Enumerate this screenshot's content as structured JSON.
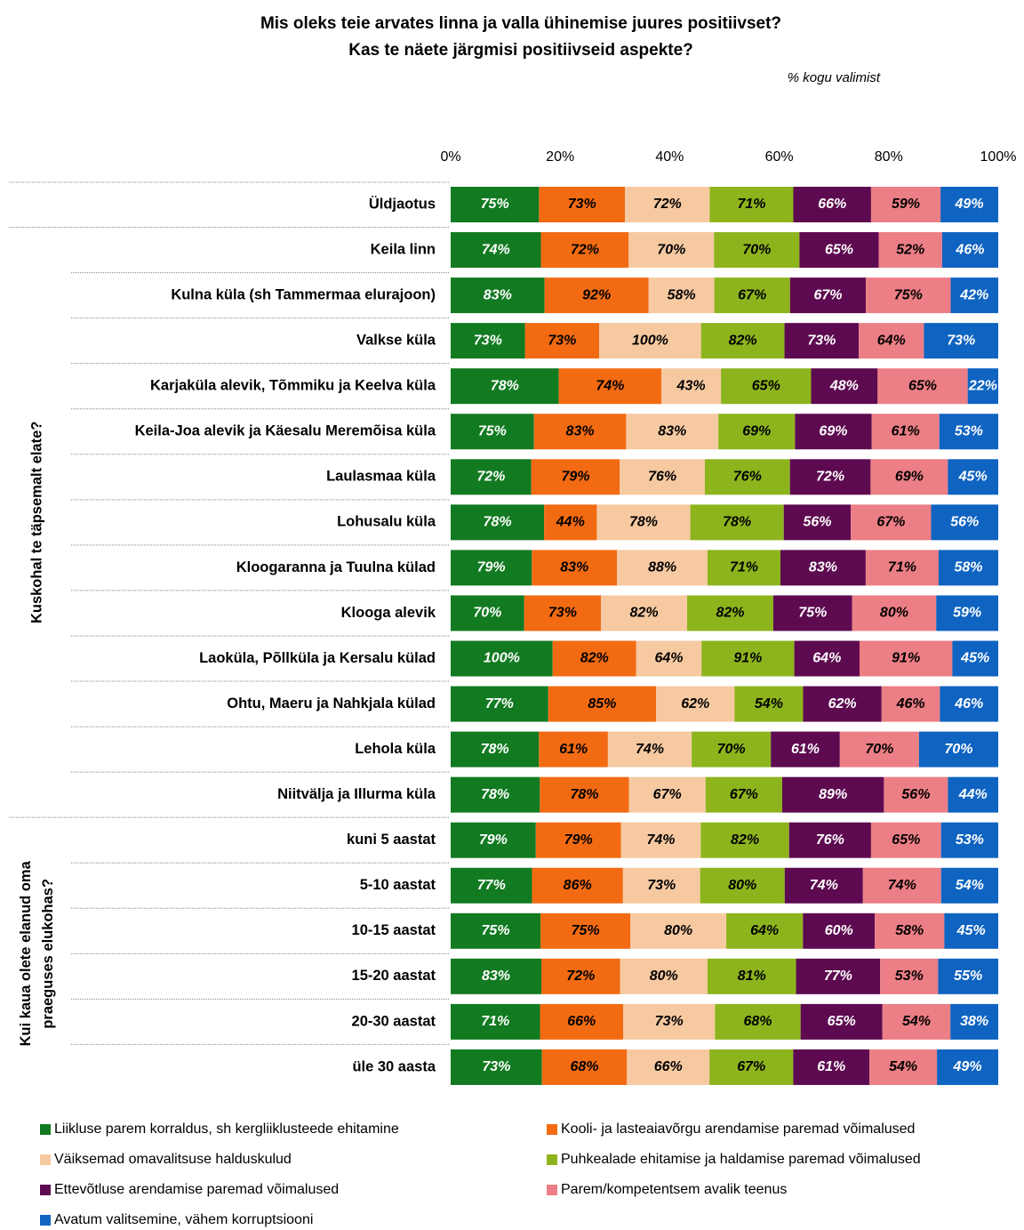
{
  "chart_data": {
    "type": "bar",
    "stacking": "percent",
    "title": [
      "Mis oleks teie arvates linna ja valla ühinemise juures positiivset?",
      "Kas te näete järgmisi positiivseid aspekte?"
    ],
    "subtitle": "% kogu valimist",
    "xlim": [
      0,
      100
    ],
    "xticks": [
      {
        "value": 0,
        "label": "0%"
      },
      {
        "value": 20,
        "label": "20%"
      },
      {
        "value": 40,
        "label": "40%"
      },
      {
        "value": 60,
        "label": "60%"
      },
      {
        "value": 80,
        "label": "80%"
      },
      {
        "value": 100,
        "label": "100%"
      }
    ],
    "groups": [
      {
        "categories": [
          "Üldjaotus"
        ]
      },
      {
        "label": [
          "Kuskohal te täpsemalt elate?"
        ],
        "categories": [
          "Keila linn",
          "Kulna küla (sh Tammermaa elurajoon)",
          "Valkse küla",
          "Karjaküla alevik, Tõmmiku ja Keelva küla",
          "Keila-Joa alevik ja Käesalu Meremõisa küla",
          "Laulasmaa küla",
          "Lohusalu küla",
          "Kloogaranna ja Tuulna külad",
          "Klooga alevik",
          "Laoküla, Põllküla ja Kersalu külad",
          "Ohtu, Maeru ja Nahkjala külad",
          "Lehola küla",
          "Niitvälja ja Illurma küla"
        ]
      },
      {
        "label": [
          "Kui kaua olete elanud oma",
          "praeguses elukohas?"
        ],
        "categories": [
          "kuni 5 aastat",
          "5-10 aastat",
          "10-15 aastat",
          "15-20 aastat",
          "20-30 aastat",
          "üle 30 aasta"
        ]
      }
    ],
    "series": [
      {
        "name": "Liikluse parem korraldus, sh kergliiklusteede ehitamine",
        "color": "#127a21",
        "label_color": "#ffffff",
        "values": [
          75,
          74,
          83,
          73,
          78,
          75,
          72,
          78,
          79,
          70,
          100,
          77,
          78,
          78,
          79,
          77,
          75,
          83,
          71,
          73
        ],
        "value_labels": [
          "75%",
          "74%",
          "83%",
          "73%",
          "78%",
          "75%",
          "72%",
          "78%",
          "79%",
          "70%",
          "100%",
          "77%",
          "78%",
          "78%",
          "79%",
          "77%",
          "75%",
          "83%",
          "71%",
          "73%"
        ]
      },
      {
        "name": "Kooli- ja lasteaiavõrgu arendamise paremad võimalused",
        "color": "#f26b12",
        "label_color": "#000000",
        "values": [
          73,
          72,
          92,
          73,
          74,
          83,
          79,
          44,
          83,
          73,
          82,
          85,
          61,
          78,
          79,
          86,
          75,
          72,
          66,
          68
        ],
        "value_labels": [
          "73%",
          "72%",
          "92%",
          "73%",
          "74%",
          "83%",
          "79%",
          "44%",
          "83%",
          "73%",
          "82%",
          "85%",
          "61%",
          "78%",
          "79%",
          "86%",
          "75%",
          "72%",
          "66%",
          "68%"
        ]
      },
      {
        "name": "Väiksemad omavalitsuse halduskulud",
        "color": "#f6c9a1",
        "label_color": "#000000",
        "values": [
          72,
          70,
          58,
          100,
          43,
          83,
          76,
          78,
          88,
          82,
          64,
          62,
          74,
          67,
          74,
          73,
          80,
          80,
          73,
          66
        ],
        "value_labels": [
          "72%",
          "70%",
          "58%",
          "100%",
          "43%",
          "83%",
          "76%",
          "78%",
          "88%",
          "82%",
          "64%",
          "62%",
          "74%",
          "67%",
          "74%",
          "73%",
          "80%",
          "80%",
          "73%",
          "66%"
        ]
      },
      {
        "name": "Puhkealade ehitamise ja haldamise paremad võimalused",
        "color": "#8db41d",
        "label_color": "#000000",
        "values": [
          71,
          70,
          67,
          82,
          65,
          69,
          76,
          78,
          71,
          82,
          91,
          54,
          70,
          67,
          82,
          80,
          64,
          81,
          68,
          67
        ],
        "value_labels": [
          "71%",
          "70%",
          "67%",
          "82%",
          "65%",
          "69%",
          "76%",
          "78%",
          "71%",
          "82%",
          "91%",
          "54%",
          "70%",
          "67%",
          "82%",
          "80%",
          "64%",
          "81%",
          "68%",
          "67%"
        ]
      },
      {
        "name": "Ettevõtluse arendamise paremad võimalused",
        "color": "#5d0a50",
        "label_color": "#ffffff",
        "values": [
          66,
          65,
          67,
          73,
          48,
          69,
          72,
          56,
          83,
          75,
          64,
          62,
          61,
          89,
          76,
          74,
          60,
          77,
          65,
          61
        ],
        "value_labels": [
          "66%",
          "65%",
          "67%",
          "73%",
          "48%",
          "69%",
          "72%",
          "56%",
          "83%",
          "75%",
          "64%",
          "62%",
          "61%",
          "89%",
          "76%",
          "74%",
          "60%",
          "77%",
          "65%",
          "61%"
        ]
      },
      {
        "name": "Parem/kompetentsem avalik teenus",
        "color": "#ec7e85",
        "label_color": "#000000",
        "values": [
          59,
          52,
          75,
          64,
          65,
          61,
          69,
          67,
          71,
          80,
          91,
          46,
          70,
          56,
          65,
          74,
          58,
          53,
          54,
          54
        ],
        "value_labels": [
          "59%",
          "52%",
          "75%",
          "64%",
          "65%",
          "61%",
          "69%",
          "67%",
          "71%",
          "80%",
          "91%",
          "46%",
          "70%",
          "56%",
          "65%",
          "74%",
          "58%",
          "53%",
          "54%",
          "54%"
        ]
      },
      {
        "name": "Avatum valitsemine, vähem korruptsiooni",
        "color": "#0f63c1",
        "label_color": "#ffffff",
        "values": [
          49,
          46,
          42,
          73,
          22,
          53,
          45,
          56,
          58,
          59,
          45,
          46,
          70,
          44,
          53,
          54,
          45,
          55,
          38,
          49
        ],
        "value_labels": [
          "49%",
          "46%",
          "42%",
          "73%",
          "22%",
          "53%",
          "45%",
          "56%",
          "58%",
          "59%",
          "45%",
          "46%",
          "70%",
          "44%",
          "53%",
          "54%",
          "45%",
          "55%",
          "38%",
          "49%"
        ]
      }
    ]
  }
}
